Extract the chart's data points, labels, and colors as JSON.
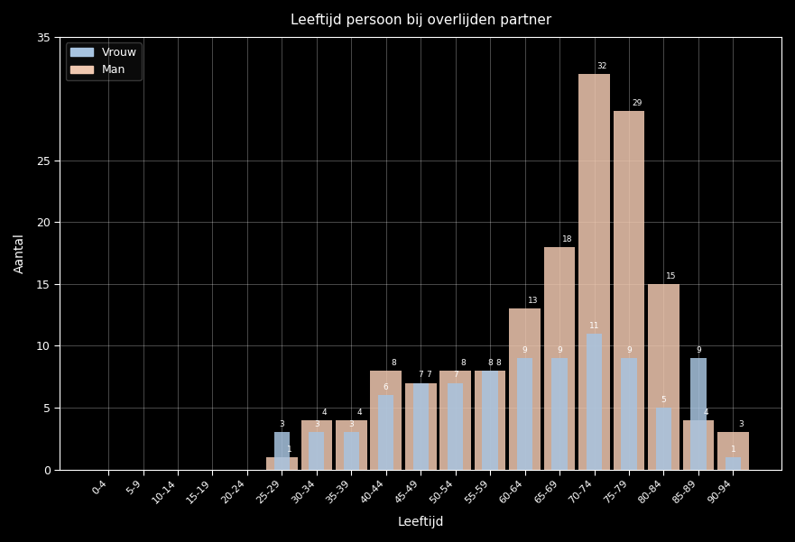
{
  "categories": [
    "0-4",
    "5-9",
    "10-14",
    "15-19",
    "20-24",
    "25-29",
    "30-34",
    "35-39",
    "40-44",
    "45-49",
    "50-54",
    "55-59",
    "60-64",
    "65-69",
    "70-74",
    "75-79",
    "80-84",
    "85-89",
    "90-94"
  ],
  "series1_label": "Vrouw",
  "series2_label": "Man",
  "series1_values": [
    0,
    0,
    0,
    0,
    0,
    3,
    3,
    3,
    6,
    7,
    7,
    8,
    9,
    9,
    11,
    9,
    5,
    9,
    1
  ],
  "series2_values": [
    0,
    0,
    0,
    0,
    0,
    1,
    4,
    4,
    8,
    7,
    8,
    8,
    13,
    18,
    32,
    29,
    15,
    4,
    3
  ],
  "color1": "#a8c4e0",
  "color2": "#f0c8b0",
  "title": "Leeftijd persoon bij overlijden partner",
  "xlabel": "Leeftijd",
  "ylabel": "Aantal",
  "ylim": [
    0,
    35
  ],
  "yticks": [
    0,
    5,
    10,
    15,
    20,
    25,
    35
  ],
  "background_color": "#000000",
  "grid_color": "#ffffff",
  "text_color": "#ffffff",
  "bar_width": 0.45
}
